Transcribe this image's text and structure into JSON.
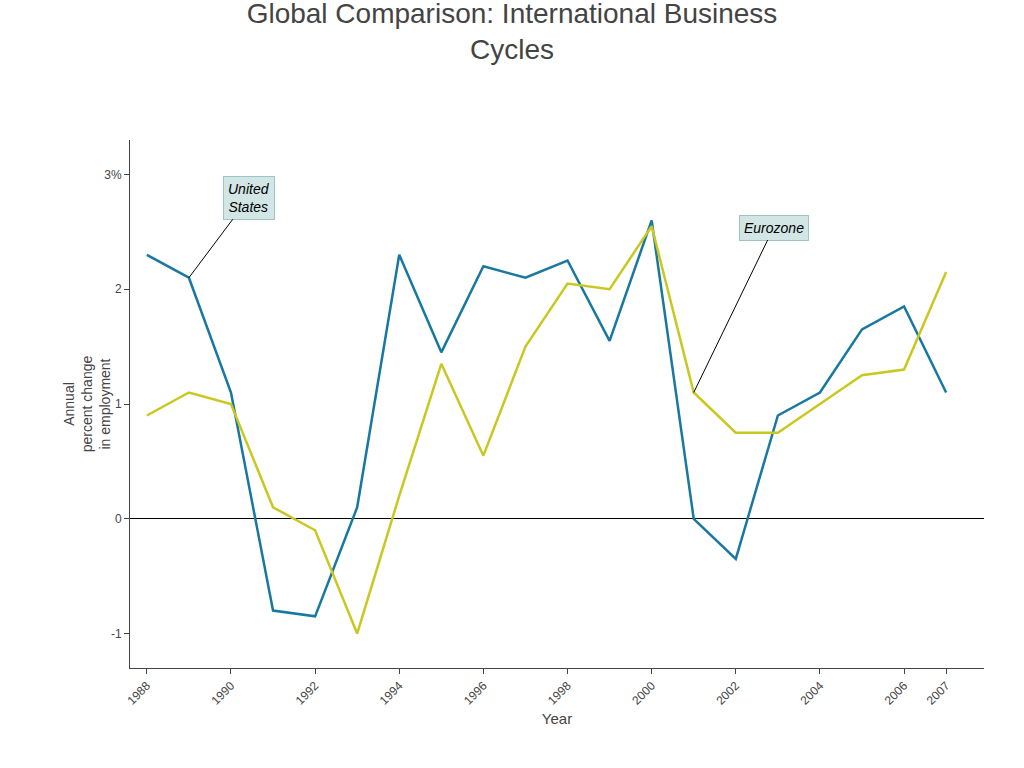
{
  "chart_data": {
    "type": "line",
    "title": "Global Comparison: International Business\nCycles",
    "x_label": "Year",
    "y_label": "Annual\npercent change\nin employment",
    "x": [
      1988,
      1989,
      1990,
      1991,
      1992,
      1993,
      1994,
      1995,
      1996,
      1997,
      1998,
      1999,
      2000,
      2001,
      2002,
      2003,
      2004,
      2005,
      2006,
      2007
    ],
    "series": [
      {
        "color": "#1878a0",
        "values": [
          2.3,
          2.1,
          1.1,
          -0.8,
          -0.85,
          0.1,
          2.3,
          1.45,
          2.2,
          2.1,
          2.25,
          1.55,
          2.6,
          0.0,
          -0.35,
          0.9,
          1.1,
          1.65,
          1.85,
          1.1
        ]
      },
      {
        "color": "#c8c820",
        "values": [
          0.9,
          1.1,
          1.0,
          0.1,
          -0.1,
          -1.0,
          0.2,
          1.35,
          0.55,
          1.5,
          2.05,
          2.0,
          2.55,
          1.1,
          0.75,
          0.75,
          1.0,
          1.25,
          1.3,
          2.15
        ]
      }
    ],
    "annotations": [
      "United\nStates",
      "Eurozone"
    ],
    "xlim": [
      1987.6,
      2007.9
    ],
    "xticks": [
      1988,
      1990,
      1992,
      1994,
      1996,
      1998,
      2000,
      2002,
      2004,
      2006,
      2007
    ],
    "ylim": [
      -1.3,
      3.3
    ],
    "yticks": [
      -1,
      0,
      1,
      2,
      {
        "value": 3,
        "label": "3%"
      }
    ],
    "grid": false
  }
}
